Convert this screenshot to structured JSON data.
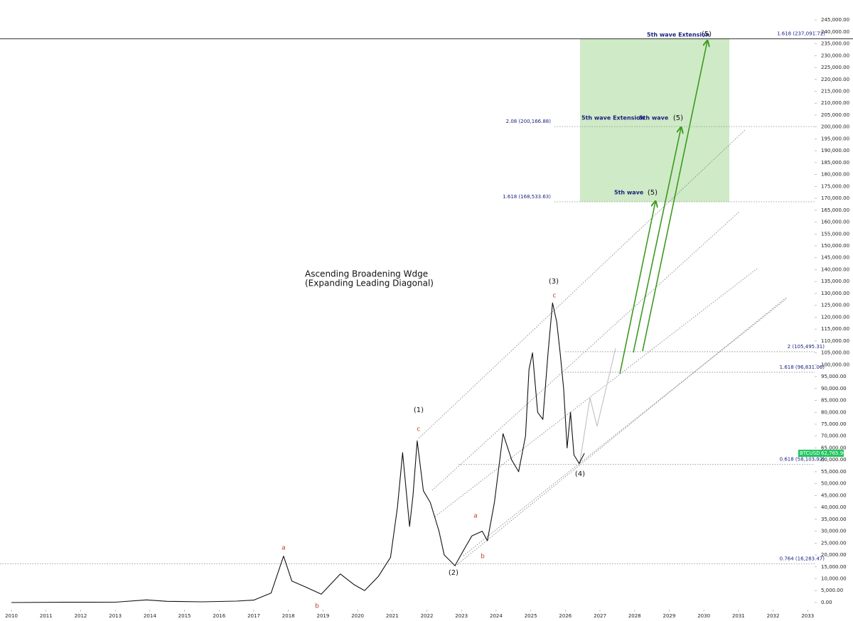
{
  "chart_data": {
    "type": "line",
    "title": [
      "Ascending Broadening Wdge",
      "(Expanding Leading Diagonal)"
    ],
    "series": [
      {
        "name": "BTCUSD",
        "color": "#111111",
        "x": [
          2010.0,
          2011.5,
          2013.0,
          2013.9,
          2014.5,
          2015.5,
          2016.5,
          2017.0,
          2017.5,
          2017.86,
          2018.1,
          2018.5,
          2018.95,
          2019.5,
          2019.9,
          2020.2,
          2020.6,
          2020.95,
          2021.15,
          2021.3,
          2021.5,
          2021.6,
          2021.72,
          2021.9,
          2022.1,
          2022.35,
          2022.5,
          2022.81,
          2023.1,
          2023.3,
          2023.6,
          2023.75,
          2023.95,
          2024.2,
          2024.45,
          2024.65,
          2024.85,
          2024.95,
          2025.05,
          2025.2,
          2025.35,
          2025.5,
          2025.63,
          2025.75,
          2025.85,
          2025.95,
          2026.05,
          2026.15,
          2026.25,
          2026.4,
          2026.55
        ],
        "values": [
          0,
          100,
          150,
          1100,
          500,
          300,
          600,
          1000,
          4000,
          19500,
          9000,
          6500,
          3500,
          12000,
          7500,
          5000,
          11000,
          19000,
          40000,
          63000,
          32000,
          45000,
          68000,
          47000,
          42000,
          30000,
          20000,
          15500,
          23000,
          28000,
          30000,
          26000,
          42000,
          71000,
          60000,
          55000,
          70000,
          98000,
          105000,
          80000,
          77000,
          105000,
          126000,
          118000,
          105000,
          90000,
          65000,
          80000,
          62000,
          58500,
          62765.96
        ],
        "last_label": "62,765.96"
      }
    ],
    "levels": [
      {
        "label": "1.618 (237,091.72)",
        "value": 237091.72
      },
      {
        "label": "2.08 (200,166.88)",
        "value": 200166.88
      },
      {
        "label": "1.618 (168,533.63)",
        "value": 168533.63
      },
      {
        "label": "2 (105,495.31)",
        "value": 105495.31
      },
      {
        "label": "1.618 (96,831.06)",
        "value": 96831.06
      },
      {
        "label": "0.618 (58,103.92)",
        "value": 58103.92
      },
      {
        "label": "0.764 (16,283.47)",
        "value": 16283.47
      }
    ],
    "annotations": [
      "(1)",
      "(2)",
      "(3)",
      "(4)",
      "(5)",
      "(5)",
      "(5)",
      "a",
      "b",
      "c",
      "a",
      "b",
      "c",
      "5th wave",
      "5th wave Extension",
      "5th wave",
      "5th wave Extension"
    ],
    "xlim": [
      2009.67,
      2033.2
    ],
    "xticks": [
      2010,
      2011,
      2012,
      2013,
      2014,
      2015,
      2016,
      2017,
      2018,
      2019,
      2020,
      2021,
      2022,
      2023,
      2024,
      2025,
      2026,
      2027,
      2028,
      2029,
      2030,
      2031,
      2032,
      2033
    ],
    "ylim": [
      -3000,
      253400
    ],
    "yticks": [
      {
        "value": 0,
        "label": "0.00"
      },
      {
        "value": 5000,
        "label": "5,000.00"
      },
      {
        "value": 10000,
        "label": "10,000.00"
      },
      {
        "value": 15000,
        "label": "15,000.00"
      },
      {
        "value": 20000,
        "label": "20,000.00"
      },
      {
        "value": 25000,
        "label": "25,000.00"
      },
      {
        "value": 30000,
        "label": "30,000.00"
      },
      {
        "value": 35000,
        "label": "35,000.00"
      },
      {
        "value": 40000,
        "label": "40,000.00"
      },
      {
        "value": 45000,
        "label": "45,000.00"
      },
      {
        "value": 50000,
        "label": "50,000.00"
      },
      {
        "value": 55000,
        "label": "55,000.00"
      },
      {
        "value": 60000,
        "label": "60,000.00"
      },
      {
        "value": 65000,
        "label": "65,000.00"
      },
      {
        "value": 70000,
        "label": "70,000.00"
      },
      {
        "value": 75000,
        "label": "75,000.00"
      },
      {
        "value": 80000,
        "label": "80,000.00"
      },
      {
        "value": 85000,
        "label": "85,000.00"
      },
      {
        "value": 90000,
        "label": "90,000.00"
      },
      {
        "value": 95000,
        "label": "95,000.00"
      },
      {
        "value": 100000,
        "label": "100,000.00"
      },
      {
        "value": 105000,
        "label": "105,000.00"
      },
      {
        "value": 110000,
        "label": "110,000.00"
      },
      {
        "value": 115000,
        "label": "115,000.00"
      },
      {
        "value": 120000,
        "label": "120,000.00"
      },
      {
        "value": 125000,
        "label": "125,000.00"
      },
      {
        "value": 130000,
        "label": "130,000.00"
      },
      {
        "value": 135000,
        "label": "135,000.00"
      },
      {
        "value": 140000,
        "label": "140,000.00"
      },
      {
        "value": 145000,
        "label": "145,000.00"
      },
      {
        "value": 150000,
        "label": "150,000.00"
      },
      {
        "value": 155000,
        "label": "155,000.00"
      },
      {
        "value": 160000,
        "label": "160,000.00"
      },
      {
        "value": 165000,
        "label": "165,000.00"
      },
      {
        "value": 170000,
        "label": "170,000.00"
      },
      {
        "value": 175000,
        "label": "175,000.00"
      },
      {
        "value": 180000,
        "label": "180,000.00"
      },
      {
        "value": 185000,
        "label": "185,000.00"
      },
      {
        "value": 190000,
        "label": "190,000.00"
      },
      {
        "value": 195000,
        "label": "195,000.00"
      },
      {
        "value": 200000,
        "label": "200,000.00"
      },
      {
        "value": 205000,
        "label": "205,000.00"
      },
      {
        "value": 210000,
        "label": "210,000.00"
      },
      {
        "value": 215000,
        "label": "215,000.00"
      },
      {
        "value": 220000,
        "label": "220,000.00"
      },
      {
        "value": 225000,
        "label": "225,000.00"
      },
      {
        "value": 230000,
        "label": "230,000.00"
      },
      {
        "value": 235000,
        "label": "235,000.00"
      },
      {
        "value": 240000,
        "label": "240,000.00"
      },
      {
        "value": 245000,
        "label": "245,000.00"
      }
    ],
    "grid": false
  }
}
